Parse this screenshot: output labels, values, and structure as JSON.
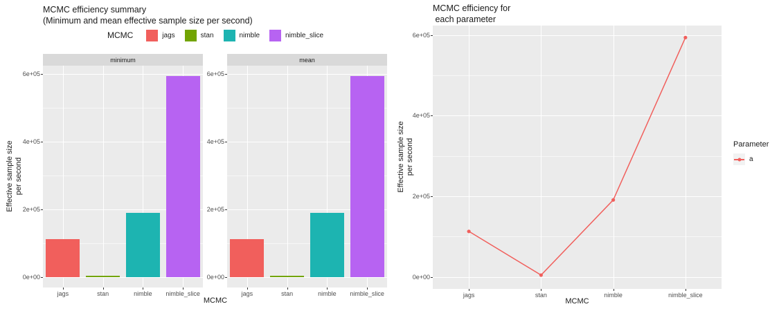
{
  "colors": {
    "panel_bg": "#EBEBEB",
    "strip_bg": "#D9D9D9",
    "grid_major": "#FFFFFF",
    "tick_text": "#4D4D4D",
    "tick_mark": "#333333",
    "title_text": "#1a1a1a",
    "legend_key_bg": "#F2F2F2"
  },
  "chart_data": [
    {
      "type": "bar",
      "title": "MCMC efficiency summary (Minimum and mean effective sample size per second)",
      "title_lines": [
        "MCMC efficiency summary",
        "(Minimum and mean effective sample size per second)"
      ],
      "categories": [
        "jags",
        "stan",
        "nimble",
        "nimble_slice"
      ],
      "series_colors": [
        "#F15F5C",
        "#72A402",
        "#1DB4B1",
        "#B763F2"
      ],
      "facets": [
        {
          "label": "minimum",
          "values": [
            113000,
            4500,
            191000,
            594000
          ]
        },
        {
          "label": "mean",
          "values": [
            113000,
            4500,
            191000,
            594000
          ]
        }
      ],
      "xlabel": "MCMC",
      "ylabel": "Effective sample size per second",
      "ylabel_lines": [
        "Effective sample size",
        "per second"
      ],
      "yticks": [
        0,
        200000,
        400000,
        600000
      ],
      "ytick_labels": [
        "0e+00",
        "2e+05",
        "4e+05",
        "6e+05"
      ],
      "ylim": [
        0,
        600000
      ],
      "expansion": 0.05,
      "grid": true,
      "legend": {
        "title": "MCMC",
        "position": "top",
        "items": [
          {
            "label": "jags",
            "color": "#F15F5C"
          },
          {
            "label": "stan",
            "color": "#72A402"
          },
          {
            "label": "nimble",
            "color": "#1DB4B1"
          },
          {
            "label": "nimble_slice",
            "color": "#B763F2"
          }
        ]
      }
    },
    {
      "type": "line",
      "title": "MCMC efficiency for each parameter",
      "title_lines": [
        "MCMC efficiency for",
        " each parameter"
      ],
      "categories": [
        "jags",
        "stan",
        "nimble",
        "nimble_slice"
      ],
      "series": [
        {
          "name": "a",
          "color": "#F15F5C",
          "values": [
            113000,
            4500,
            191000,
            594000
          ]
        }
      ],
      "xlabel": "MCMC",
      "ylabel": "Effective sample size per second",
      "ylabel_lines": [
        "Effective sample size",
        "per second"
      ],
      "yticks": [
        0,
        200000,
        400000,
        600000
      ],
      "ytick_labels": [
        "0e+00",
        "2e+05",
        "4e+05",
        "6e+05"
      ],
      "ylim": [
        0,
        600000
      ],
      "expansion": 0.05,
      "grid": true,
      "legend": {
        "title": "Parameter",
        "position": "right",
        "items": [
          {
            "label": "a",
            "color": "#F15F5C"
          }
        ]
      }
    }
  ]
}
